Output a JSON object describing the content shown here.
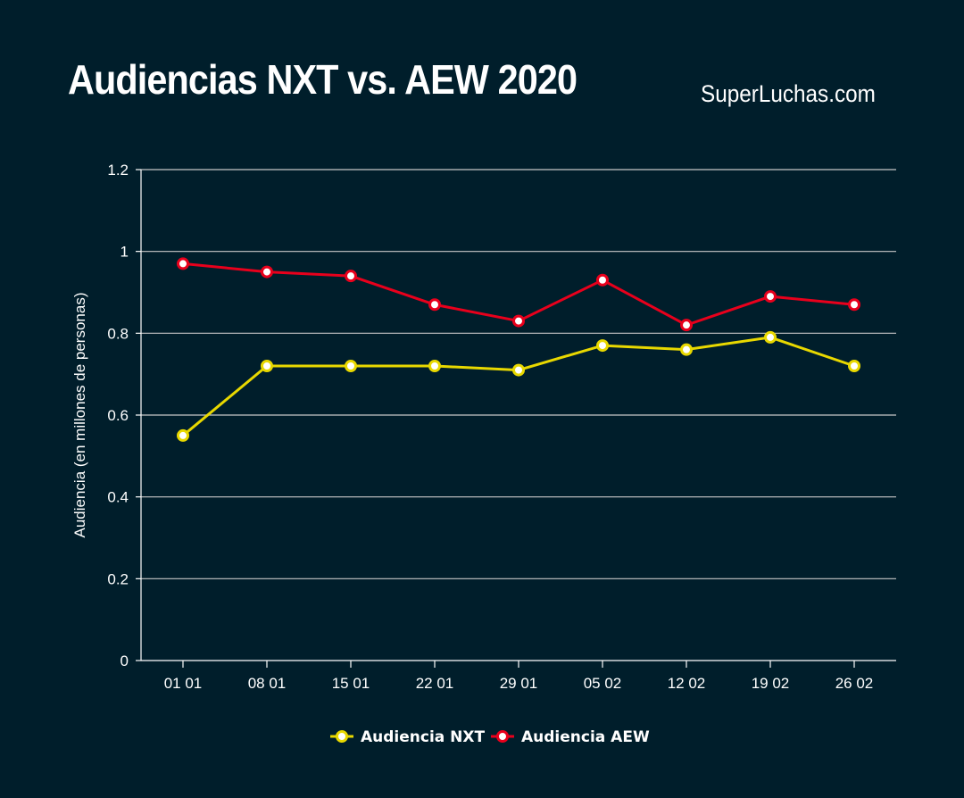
{
  "header": {
    "title": "Audiencias NXT vs. AEW 2020",
    "brand": "SuperLuchas.com"
  },
  "chart_data": {
    "type": "line",
    "title": "Audiencias NXT vs. AEW 2020",
    "xlabel": "",
    "ylabel": "Audiencia (en millones de personas)",
    "ylim": [
      0,
      1.2
    ],
    "yticks": [
      "0",
      "0.2",
      "0.4",
      "0.6",
      "0.8",
      "1",
      "1.2"
    ],
    "categories": [
      "01 01",
      "08 01",
      "15 01",
      "22 01",
      "29 01",
      "05 02",
      "12 02",
      "19 02",
      "26 02"
    ],
    "grid": true,
    "legend": "bottom",
    "series": [
      {
        "name": "Audiencia NXT",
        "color": "#e8d800",
        "values": [
          0.55,
          0.72,
          0.72,
          0.72,
          0.71,
          0.77,
          0.76,
          0.79,
          0.72
        ]
      },
      {
        "name": "Audiencia AEW",
        "color": "#e8001c",
        "values": [
          0.97,
          0.95,
          0.94,
          0.87,
          0.83,
          0.93,
          0.82,
          0.89,
          0.87
        ]
      }
    ]
  }
}
